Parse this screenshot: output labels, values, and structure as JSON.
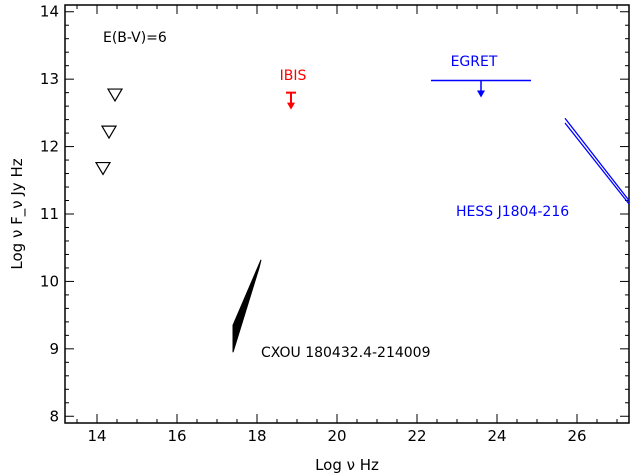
{
  "chart_data": {
    "type": "scatter",
    "xlabel": "Log ν Hz",
    "ylabel": "Log ν F_ν Jy Hz",
    "xlim": [
      13.2,
      27.3
    ],
    "ylim": [
      7.9,
      14.1
    ],
    "xticks": [
      14,
      16,
      18,
      20,
      22,
      24,
      26
    ],
    "yticks": [
      8,
      9,
      10,
      11,
      12,
      13,
      14
    ],
    "grid": false,
    "annotation_ebv": "E(B-V)=6",
    "infrared_upper_limits": [
      {
        "x": 14.45,
        "y": 12.77
      },
      {
        "x": 14.3,
        "y": 12.22
      },
      {
        "x": 14.15,
        "y": 11.68
      }
    ],
    "ibis": {
      "label": "IBIS",
      "color": "#ff0000",
      "upper_limit": {
        "x": 18.85,
        "y": 12.8
      }
    },
    "egret": {
      "label": "EGRET",
      "color": "#0000ff",
      "x_range": [
        22.35,
        24.85
      ],
      "y": 12.98,
      "arrow_x": 23.6
    },
    "hess": {
      "label": "HESS J1804-216",
      "color": "#0000ff",
      "bowtie_upper": [
        [
          25.7,
          12.42
        ],
        [
          27.3,
          11.2
        ]
      ],
      "bowtie_lower": [
        [
          25.7,
          12.35
        ],
        [
          27.3,
          11.15
        ]
      ]
    },
    "cxou": {
      "label": "CXOU 180432.4-214009",
      "color": "#000000",
      "bowtie_polygon": [
        [
          17.4,
          9.35
        ],
        [
          18.1,
          10.32
        ],
        [
          18.05,
          10.2
        ],
        [
          17.4,
          8.95
        ]
      ]
    }
  }
}
